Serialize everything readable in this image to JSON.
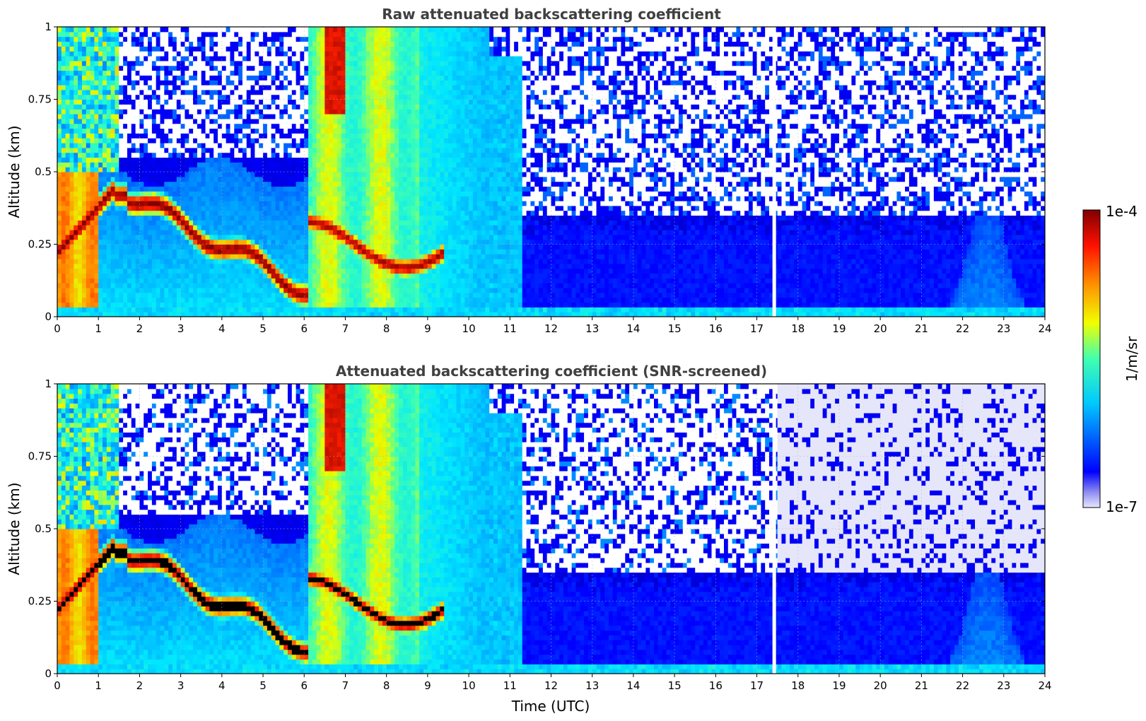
{
  "chart_data": [
    {
      "type": "heatmap",
      "title": "Raw attenuated backscattering coefficient",
      "xlabel": "",
      "ylabel": "Altitude (km)",
      "xlim": [
        0,
        24
      ],
      "ylim": [
        0,
        1
      ],
      "x_ticks": [
        "0",
        "1",
        "2",
        "3",
        "4",
        "5",
        "6",
        "7",
        "8",
        "9",
        "10",
        "11",
        "12",
        "13",
        "14",
        "15",
        "16",
        "17",
        "18",
        "19",
        "20",
        "21",
        "22",
        "23",
        "24"
      ],
      "y_ticks": [
        "0",
        "0.25",
        "0.5",
        "0.75",
        "1"
      ],
      "grid": true,
      "colormap": "jet",
      "screened": false,
      "colors": {
        "low": "#0000ff",
        "mid": "#00ffff",
        "high": "#ff0000",
        "peak": "#800000"
      }
    },
    {
      "type": "heatmap",
      "title": "Attenuated backscattering coefficient (SNR-screened)",
      "xlabel": "Time (UTC)",
      "ylabel": "Altitude (km)",
      "xlim": [
        0,
        24
      ],
      "ylim": [
        0,
        1
      ],
      "x_ticks": [
        "0",
        "1",
        "2",
        "3",
        "4",
        "5",
        "6",
        "7",
        "8",
        "9",
        "10",
        "11",
        "12",
        "13",
        "14",
        "15",
        "16",
        "17",
        "18",
        "19",
        "20",
        "21",
        "22",
        "23",
        "24"
      ],
      "y_ticks": [
        "0",
        "0.25",
        "0.5",
        "0.75",
        "1"
      ],
      "grid": true,
      "colormap": "jet",
      "screened": true,
      "colors": {
        "screened_out": "#e6e6fa",
        "saturated": "#000000"
      }
    }
  ],
  "colorbar": {
    "label": "1/m/sr",
    "max_label": "1e-4",
    "min_label": "1e-7",
    "range": [
      1e-07,
      0.0001
    ],
    "scale": "log"
  }
}
